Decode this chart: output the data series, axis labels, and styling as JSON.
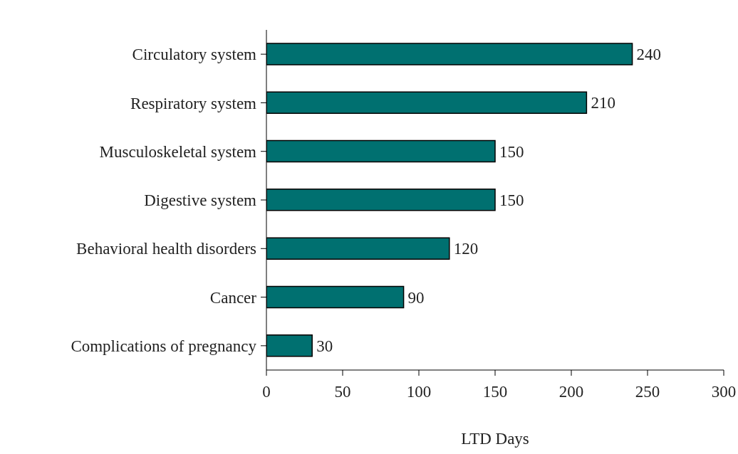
{
  "chart_data": {
    "type": "bar",
    "orientation": "horizontal",
    "xlabel": "LTD Days",
    "categories": [
      "Circulatory system",
      "Respiratory system",
      "Musculoskeletal system",
      "Digestive system",
      "Behavioral health disorders",
      "Cancer",
      "Complications of pregnancy"
    ],
    "values": [
      240,
      210,
      150,
      150,
      120,
      90,
      30
    ],
    "color": "#007070",
    "xlim": [
      0,
      300
    ],
    "xticks": [
      0,
      50,
      100,
      150,
      200,
      250,
      300
    ],
    "data_labels": true,
    "grid": false,
    "legend": false
  }
}
